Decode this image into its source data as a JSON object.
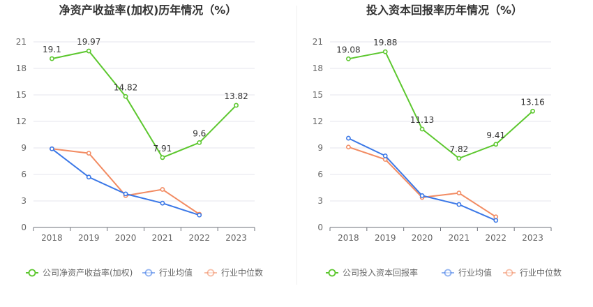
{
  "chart_data": [
    {
      "type": "line",
      "title": "净资产收益率(加权)历年情况（%）",
      "categories": [
        "2018",
        "2019",
        "2020",
        "2021",
        "2022",
        "2023"
      ],
      "ylim": [
        0,
        21
      ],
      "yticks": [
        0,
        3,
        6,
        9,
        12,
        15,
        18,
        21
      ],
      "series": [
        {
          "name": "公司净资产收益率(加权)",
          "color": "#5cc72e",
          "labels": [
            "19.1",
            "19.97",
            "14.82",
            "7.91",
            "9.6",
            "13.82"
          ],
          "values": [
            19.1,
            19.97,
            14.82,
            7.91,
            9.6,
            13.82
          ]
        },
        {
          "name": "行业均值",
          "color": "#3b78e7",
          "values": [
            8.9,
            5.7,
            3.8,
            2.75,
            1.4,
            null
          ]
        },
        {
          "name": "行业中位数",
          "color": "#f28b62",
          "values": [
            8.9,
            8.4,
            3.6,
            4.3,
            1.5,
            null
          ]
        }
      ]
    },
    {
      "type": "line",
      "title": "投入资本回报率历年情况（%）",
      "categories": [
        "2018",
        "2019",
        "2020",
        "2021",
        "2022",
        "2023"
      ],
      "ylim": [
        0,
        21
      ],
      "yticks": [
        0,
        3,
        6,
        9,
        12,
        15,
        18,
        21
      ],
      "series": [
        {
          "name": "公司投入资本回报率",
          "color": "#5cc72e",
          "labels": [
            "19.08",
            "19.88",
            "11.13",
            "7.82",
            "9.41",
            "13.16"
          ],
          "values": [
            19.08,
            19.88,
            11.13,
            7.82,
            9.41,
            13.16
          ]
        },
        {
          "name": "行业均值",
          "color": "#3b78e7",
          "values": [
            10.1,
            8.1,
            3.6,
            2.6,
            0.8,
            null
          ]
        },
        {
          "name": "行业中位数",
          "color": "#f28b62",
          "values": [
            9.1,
            7.7,
            3.4,
            3.9,
            1.2,
            null
          ]
        }
      ]
    }
  ]
}
